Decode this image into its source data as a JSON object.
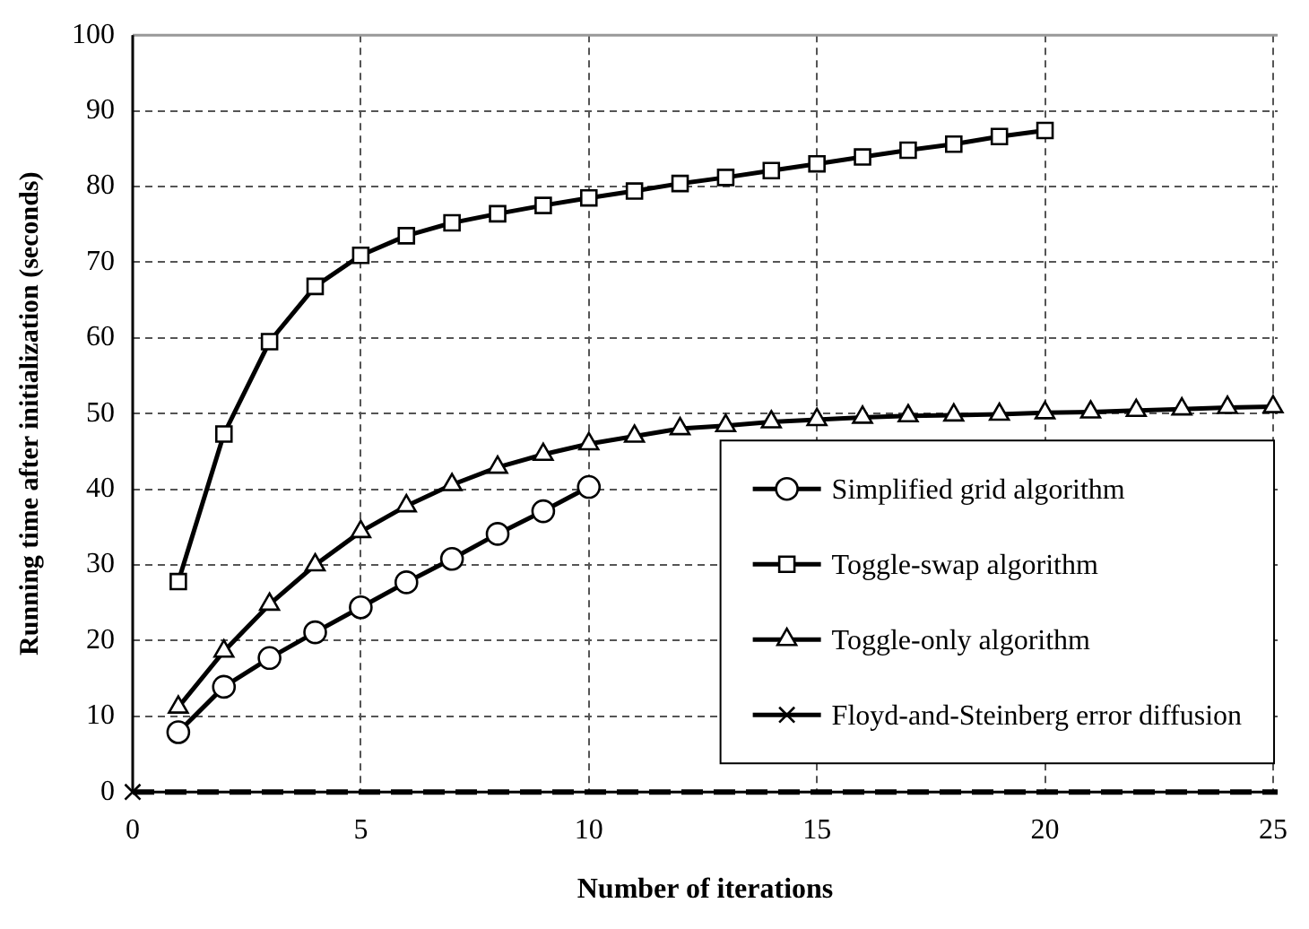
{
  "chart_data": {
    "type": "line",
    "xlabel": "Number of iterations",
    "ylabel": "Running time after initialization (seconds)",
    "xlim": [
      0,
      25.1
    ],
    "xticks": [
      0,
      5,
      10,
      15,
      20,
      25
    ],
    "ylim": [
      0,
      100
    ],
    "yticks": [
      0,
      10,
      20,
      30,
      40,
      50,
      60,
      70,
      80,
      90,
      100
    ],
    "grid": true,
    "legend": "bottom right",
    "line_style": "solid",
    "series": [
      {
        "name": "Simplified grid algorithm",
        "color": "#000000",
        "marker": "circle",
        "x": [
          1,
          2,
          3,
          4,
          5,
          6,
          7,
          8,
          9,
          10
        ],
        "values": [
          7.9,
          13.9,
          17.7,
          21.1,
          24.4,
          27.7,
          30.8,
          34.1,
          37.1,
          40.3
        ]
      },
      {
        "name": "Toggle-swap algorithm",
        "color": "#000000",
        "marker": "square",
        "x": [
          1,
          2,
          3,
          4,
          5,
          6,
          7,
          8,
          9,
          10,
          11,
          12,
          13,
          14,
          15,
          16,
          17,
          18,
          19,
          20
        ],
        "values": [
          27.8,
          47.3,
          59.5,
          66.8,
          70.9,
          73.5,
          75.2,
          76.4,
          77.5,
          78.5,
          79.4,
          80.4,
          81.2,
          82.1,
          83,
          83.9,
          84.8,
          85.6,
          86.6,
          87.4
        ]
      },
      {
        "name": "Toggle-only algorithm",
        "color": "#000000",
        "marker": "triangle",
        "x": [
          1,
          2,
          3,
          4,
          5,
          6,
          7,
          8,
          9,
          10,
          11,
          12,
          13,
          14,
          15,
          16,
          17,
          18,
          19,
          20,
          21,
          22,
          23,
          24,
          25
        ],
        "values": [
          11.2,
          18.6,
          24.8,
          30,
          34.4,
          37.8,
          40.6,
          42.9,
          44.6,
          46,
          47,
          48,
          48.4,
          48.9,
          49.2,
          49.5,
          49.7,
          49.8,
          49.9,
          50.1,
          50.2,
          50.4,
          50.6,
          50.8,
          50.9
        ]
      },
      {
        "name": "Floyd-and-Steinberg error diffusion",
        "color": "#000000",
        "marker": "cross",
        "x": [
          0
        ],
        "values": [
          0
        ]
      }
    ],
    "ref_lines": [
      {
        "axis": "y",
        "value": 0,
        "color": "#000000",
        "line_style": "dashed"
      }
    ]
  }
}
